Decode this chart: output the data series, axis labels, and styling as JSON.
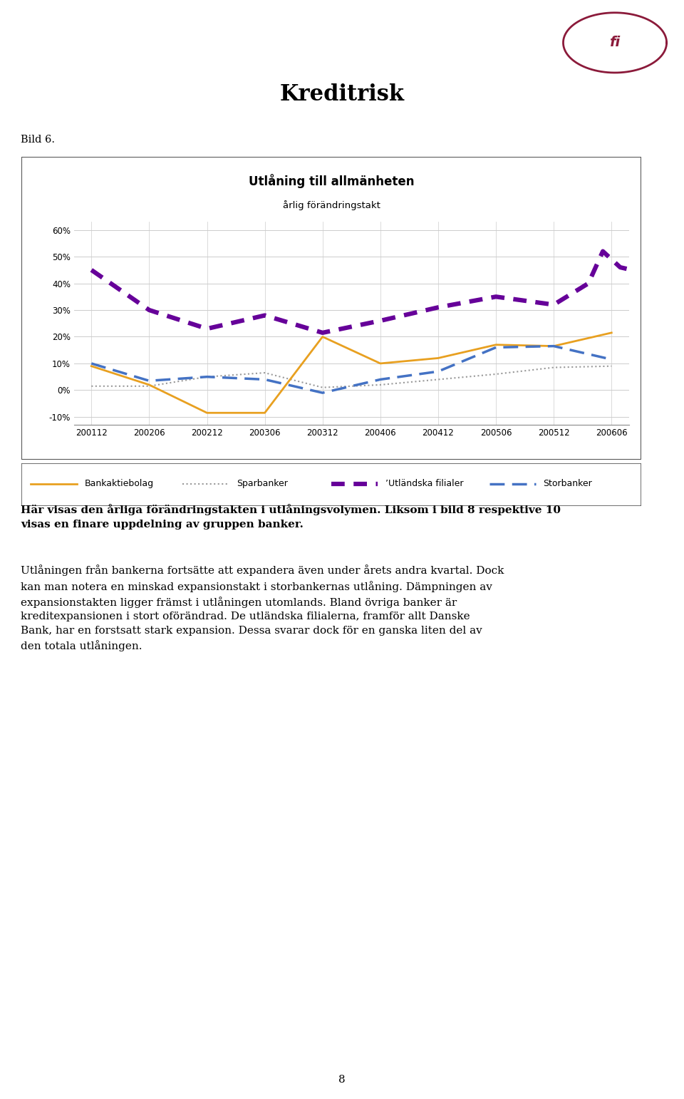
{
  "title_main": "Kreditrisk",
  "bild_label": "Bild 6.",
  "chart_title_line1": "Utlåning till allmänheten",
  "chart_title_line2": "årlig förändringstakt",
  "x_labels": [
    "200112",
    "200206",
    "200212",
    "200306",
    "200312",
    "200406",
    "200412",
    "200506",
    "200512",
    "200606"
  ],
  "ylim_low": -0.13,
  "ylim_high": 0.63,
  "ytick_vals": [
    -0.1,
    0.0,
    0.1,
    0.2,
    0.3,
    0.4,
    0.5,
    0.6
  ],
  "ytick_labels": [
    "-10%",
    "0%",
    "10%",
    "20%",
    "30%",
    "40%",
    "50%",
    "60%"
  ],
  "bankaktiebolag": [
    0.09,
    0.02,
    -0.085,
    -0.085,
    0.2,
    0.1,
    0.12,
    0.17,
    0.165,
    0.215
  ],
  "sparbanker": [
    0.015,
    0.015,
    0.05,
    0.065,
    0.01,
    0.02,
    0.04,
    0.06,
    0.085,
    0.09
  ],
  "utlandska": [
    0.45,
    0.3,
    0.23,
    0.28,
    0.215,
    0.26,
    0.31,
    0.35,
    0.32,
    0.4,
    0.52,
    0.46,
    0.44
  ],
  "utlandska_xi": [
    0,
    1,
    2,
    3,
    4,
    5,
    6,
    7,
    8,
    8.6,
    8.85,
    9.15,
    9.55
  ],
  "storbanker": [
    0.1,
    0.035,
    0.05,
    0.04,
    -0.01,
    0.04,
    0.07,
    0.16,
    0.165,
    0.115
  ],
  "color_bankaktiebolag": "#E8A020",
  "color_sparbanker": "#999999",
  "color_utlandska": "#660099",
  "color_storbanker": "#4472C4",
  "legend_labels": [
    "Bankaktiebolag",
    "Sparbanker",
    "’Utländska filialer",
    "Storbanker"
  ],
  "body_text_bold": "Här visas den årliga förändringstakten i utlåningsvolymen. Liksom i bild 8 respektive 10\nvisas en finare uppdelning av gruppen banker.",
  "body_text_normal": "Utlåningen från bankerna fortsätte att expandera även under årets andra kvartal. Dock\nkan man notera en minskad expansionstakt i storbankernas utlåning. Dämpningen av\nexpansionstakten ligger främst i utlåningen utomlands. Bland övriga banker är\nkreditexpansionen i stort oförändrad. De utländska filialerna, framför allt Danske\nBank, har en forstsatt stark expansion. Dessa svarar dock för en ganska liten del av\nden totala utlåningen.",
  "page_number": "8",
  "fig_width": 9.6,
  "fig_height": 15.42,
  "dpi": 100
}
